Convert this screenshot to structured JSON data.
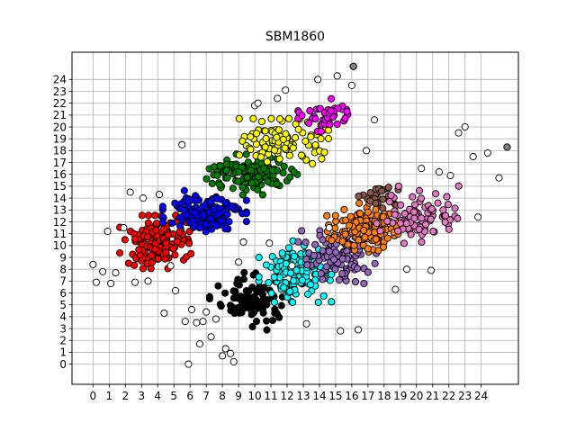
{
  "chart_data": {
    "type": "scatter",
    "title": "SBM1860",
    "xlabel": "",
    "ylabel": "",
    "xlim": [
      -1.3,
      26.3
    ],
    "ylim": [
      -1.7,
      26.3
    ],
    "xticks": [
      0,
      1,
      2,
      3,
      4,
      5,
      6,
      7,
      8,
      9,
      10,
      11,
      12,
      13,
      14,
      15,
      16,
      17,
      18,
      19,
      20,
      21,
      22,
      23,
      24
    ],
    "yticks": [
      0,
      1,
      2,
      3,
      4,
      5,
      6,
      7,
      8,
      9,
      10,
      11,
      12,
      13,
      14,
      15,
      16,
      17,
      18,
      19,
      20,
      21,
      22,
      23,
      24
    ],
    "grid": true,
    "legend": "none",
    "clusters": [
      {
        "color": "#ff0000",
        "center": [
          3.9,
          10.3
        ],
        "spread": [
          1.3,
          1.3
        ],
        "count": 150
      },
      {
        "color": "#0000ff",
        "center": [
          6.9,
          12.9
        ],
        "spread": [
          1.5,
          1.0
        ],
        "count": 150
      },
      {
        "color": "#008000",
        "center": [
          9.7,
          16.0
        ],
        "spread": [
          1.7,
          1.0
        ],
        "count": 130
      },
      {
        "color": "#ffff00",
        "center": [
          11.8,
          18.8
        ],
        "spread": [
          1.6,
          1.1
        ],
        "count": 110
      },
      {
        "color": "#ff00ff",
        "center": [
          14.4,
          21.0
        ],
        "spread": [
          1.0,
          0.8
        ],
        "count": 45
      },
      {
        "color": "#000000",
        "center": [
          9.8,
          5.3
        ],
        "spread": [
          1.5,
          1.4
        ],
        "count": 90
      },
      {
        "color": "#00ffff",
        "center": [
          12.5,
          7.8
        ],
        "spread": [
          1.3,
          1.5
        ],
        "count": 150
      },
      {
        "color": "#9467bd",
        "center": [
          15.1,
          9.0
        ],
        "spread": [
          1.4,
          1.3
        ],
        "count": 110
      },
      {
        "color": "#ff7f0e",
        "center": [
          16.7,
          11.5
        ],
        "spread": [
          1.3,
          1.2
        ],
        "count": 120
      },
      {
        "color": "#8c564b",
        "center": [
          17.8,
          14.2
        ],
        "spread": [
          0.8,
          0.8
        ],
        "count": 25
      },
      {
        "color": "#e377c2",
        "center": [
          20.3,
          12.6
        ],
        "spread": [
          1.6,
          1.4
        ],
        "count": 80
      }
    ],
    "noise_points": [
      [
        0.0,
        8.4
      ],
      [
        0.2,
        6.9
      ],
      [
        0.6,
        7.8
      ],
      [
        0.9,
        11.2
      ],
      [
        1.1,
        6.8
      ],
      [
        1.4,
        7.7
      ],
      [
        1.9,
        11.5
      ],
      [
        2.3,
        14.5
      ],
      [
        2.6,
        6.9
      ],
      [
        3.1,
        14.0
      ],
      [
        3.4,
        7.0
      ],
      [
        4.1,
        14.3
      ],
      [
        4.4,
        4.3
      ],
      [
        4.8,
        8.3
      ],
      [
        5.1,
        6.2
      ],
      [
        5.5,
        18.5
      ],
      [
        5.7,
        3.6
      ],
      [
        5.9,
        0.0
      ],
      [
        6.1,
        4.6
      ],
      [
        6.4,
        3.5
      ],
      [
        6.6,
        1.7
      ],
      [
        6.8,
        3.6
      ],
      [
        7.0,
        4.4
      ],
      [
        7.3,
        2.3
      ],
      [
        7.6,
        3.8
      ],
      [
        8.0,
        0.7
      ],
      [
        8.2,
        1.3
      ],
      [
        8.5,
        0.9
      ],
      [
        8.7,
        0.2
      ],
      [
        9.0,
        8.6
      ],
      [
        9.3,
        10.3
      ],
      [
        10.0,
        21.8
      ],
      [
        10.2,
        22.0
      ],
      [
        10.9,
        10.2
      ],
      [
        11.4,
        22.4
      ],
      [
        11.9,
        23.1
      ],
      [
        12.3,
        8.3
      ],
      [
        13.2,
        3.4
      ],
      [
        13.9,
        24.0
      ],
      [
        14.6,
        11.5
      ],
      [
        15.1,
        24.3
      ],
      [
        15.3,
        2.8
      ],
      [
        16.0,
        23.5
      ],
      [
        16.4,
        2.9
      ],
      [
        16.9,
        18.0
      ],
      [
        17.4,
        20.6
      ],
      [
        18.7,
        6.3
      ],
      [
        19.4,
        8.0
      ],
      [
        20.3,
        16.5
      ],
      [
        20.9,
        7.9
      ],
      [
        21.4,
        16.2
      ],
      [
        22.1,
        15.9
      ],
      [
        22.6,
        19.5
      ],
      [
        23.0,
        20.0
      ],
      [
        23.5,
        17.5
      ],
      [
        23.8,
        12.4
      ],
      [
        24.4,
        17.8
      ],
      [
        25.1,
        15.7
      ],
      [
        16.1,
        25.1
      ],
      [
        25.6,
        18.3
      ]
    ],
    "noise_fill": "#ffffff",
    "special_points": [
      {
        "x": 16.1,
        "y": 25.1,
        "color": "#808080"
      },
      {
        "x": 25.6,
        "y": 18.3,
        "color": "#808080"
      }
    ]
  }
}
